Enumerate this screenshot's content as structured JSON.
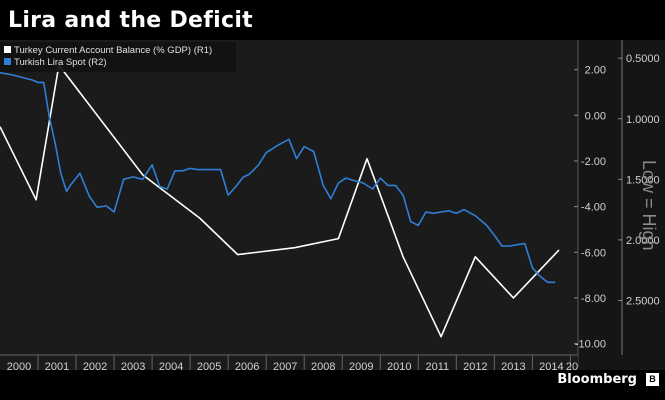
{
  "title": "Lira and the Deficit",
  "brand": "Bloomberg",
  "brand_icon": "bloomberg-b-icon",
  "side_note": "Low = High",
  "colors": {
    "background": "#000000",
    "plot_bg": "#1b1b1b",
    "series1": "#ffffff",
    "series2": "#2f7fd8",
    "axis_text": "#d0d0d0"
  },
  "chart_data": {
    "type": "line",
    "title": "Lira and the Deficit",
    "x_ticks": [
      "2000",
      "2001",
      "2002",
      "2003",
      "2004",
      "2005",
      "2006",
      "2007",
      "2008",
      "2009",
      "2010",
      "2011",
      "2012",
      "2013",
      "2014",
      "20"
    ],
    "xlim": [
      2000,
      2015.2
    ],
    "y_left_ticks": [
      "2.00",
      "0.00",
      "-2.00",
      "-4.00",
      "-6.00",
      "-8.00",
      "-10.00"
    ],
    "y_left_lim": [
      -10.5,
      3.3
    ],
    "y_right_ticks": [
      "0.5000",
      "1.0000",
      "1.5000",
      "2.0000",
      "2.5000"
    ],
    "y_right_lim": [
      0.35,
      2.95
    ],
    "y_right_inverted": true,
    "legend_position": "top-left",
    "series": [
      {
        "name": "Turkey Current Account Balance (% GDP)  (R1)",
        "axis": "left",
        "color": "#ffffff",
        "x": [
          2000.0,
          2000.95,
          2001.55,
          2003.75,
          2005.25,
          2006.25,
          2007.75,
          2008.9,
          2009.65,
          2010.6,
          2011.6,
          2012.5,
          2013.5,
          2014.7
        ],
        "y": [
          -0.5,
          -3.7,
          2.2,
          -2.6,
          -4.5,
          -6.1,
          -5.8,
          -5.4,
          -1.9,
          -6.2,
          -9.7,
          -6.2,
          -8.0,
          -5.9
        ]
      },
      {
        "name": "Turkish Lira Spot  (R2)",
        "axis": "right",
        "color": "#2f7fd8",
        "x": [
          2000.0,
          2000.35,
          2000.6,
          2000.85,
          2001.0,
          2001.15,
          2001.3,
          2001.45,
          2001.6,
          2001.75,
          2001.85,
          2002.1,
          2002.35,
          2002.55,
          2002.8,
          2003.0,
          2003.25,
          2003.5,
          2003.75,
          2004.0,
          2004.2,
          2004.4,
          2004.6,
          2004.8,
          2005.0,
          2005.2,
          2005.4,
          2005.6,
          2005.8,
          2006.0,
          2006.2,
          2006.4,
          2006.55,
          2006.8,
          2007.0,
          2007.3,
          2007.6,
          2007.8,
          2008.0,
          2008.25,
          2008.5,
          2008.7,
          2008.9,
          2009.1,
          2009.3,
          2009.55,
          2009.8,
          2010.0,
          2010.2,
          2010.4,
          2010.6,
          2010.8,
          2011.0,
          2011.2,
          2011.4,
          2011.6,
          2011.8,
          2012.0,
          2012.2,
          2012.5,
          2012.8,
          2013.0,
          2013.2,
          2013.4,
          2013.6,
          2013.8,
          2014.0,
          2014.2,
          2014.4,
          2014.6
        ],
        "y": [
          0.62,
          0.64,
          0.66,
          0.68,
          0.7,
          0.7,
          0.99,
          1.2,
          1.45,
          1.6,
          1.55,
          1.45,
          1.64,
          1.73,
          1.72,
          1.77,
          1.5,
          1.48,
          1.5,
          1.38,
          1.56,
          1.58,
          1.43,
          1.43,
          1.41,
          1.42,
          1.42,
          1.42,
          1.42,
          1.63,
          1.56,
          1.48,
          1.46,
          1.38,
          1.28,
          1.22,
          1.17,
          1.33,
          1.23,
          1.27,
          1.55,
          1.66,
          1.53,
          1.49,
          1.51,
          1.53,
          1.58,
          1.49,
          1.55,
          1.55,
          1.63,
          1.85,
          1.88,
          1.77,
          1.78,
          1.77,
          1.76,
          1.78,
          1.75,
          1.8,
          1.88,
          1.96,
          2.05,
          2.05,
          2.04,
          2.03,
          2.23,
          2.3,
          2.35,
          2.35
        ]
      }
    ]
  }
}
